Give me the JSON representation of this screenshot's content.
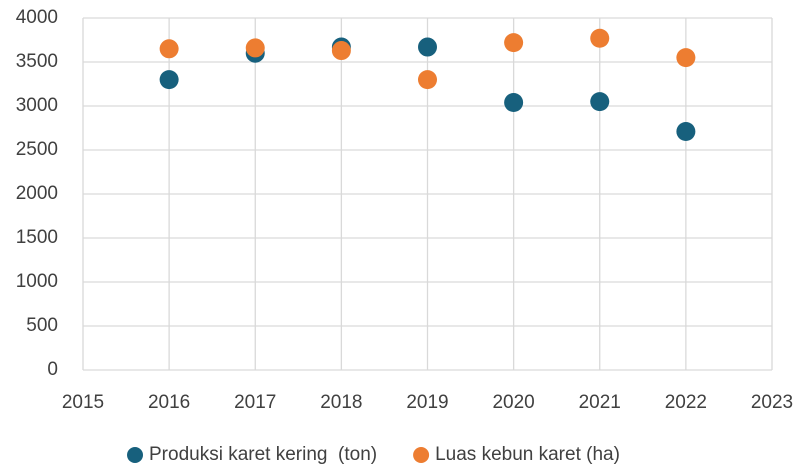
{
  "chart_data": {
    "type": "scatter",
    "x": [
      2016,
      2017,
      2018,
      2019,
      2020,
      2021,
      2022
    ],
    "series": [
      {
        "name": "Produksi karet kering  (ton)",
        "color": "#17607d",
        "values": [
          3300,
          3600,
          3670,
          3670,
          3040,
          3050,
          2710
        ]
      },
      {
        "name": "Luas kebun karet (ha)",
        "color": "#ed7d31",
        "values": [
          3650,
          3660,
          3630,
          3300,
          3720,
          3770,
          3550
        ]
      }
    ],
    "xlim": [
      2015,
      2023
    ],
    "xticks": [
      2015,
      2016,
      2017,
      2018,
      2019,
      2020,
      2021,
      2022,
      2023
    ],
    "ylim": [
      0,
      4000
    ],
    "yticks": [
      0,
      500,
      1000,
      1500,
      2000,
      2500,
      3000,
      3500,
      4000
    ],
    "grid": true,
    "legend": "bottom"
  }
}
